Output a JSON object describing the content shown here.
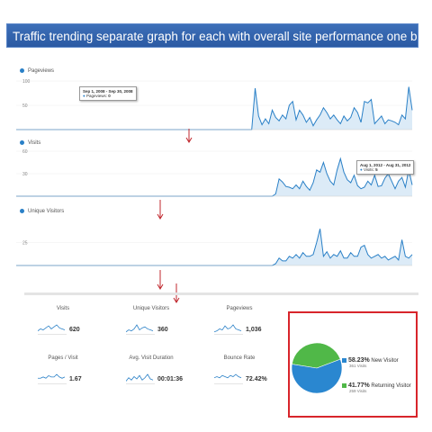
{
  "banner": {
    "title": "Traffic trending separate graph for each with overall site performance one below the other"
  },
  "colors": {
    "line": "#2a80c7",
    "fill": "#dcebf7",
    "arrow": "#c0272d",
    "new_visitor": "#2a87d0",
    "returning_visitor": "#50b848"
  },
  "chart_data": [
    {
      "type": "area",
      "name": "Pageviews",
      "legend": "Pageviews",
      "yticks": [
        "100",
        "50"
      ],
      "ylim": [
        0,
        100
      ],
      "values": [
        0,
        0,
        0,
        0,
        0,
        0,
        0,
        0,
        0,
        0,
        0,
        0,
        0,
        0,
        0,
        0,
        0,
        0,
        0,
        0,
        0,
        0,
        0,
        0,
        0,
        0,
        0,
        0,
        0,
        0,
        0,
        0,
        0,
        0,
        0,
        0,
        0,
        0,
        0,
        0,
        0,
        0,
        0,
        0,
        0,
        0,
        0,
        0,
        0,
        0,
        0,
        0,
        0,
        0,
        0,
        0,
        0,
        0,
        0,
        0,
        0,
        0,
        0,
        0,
        0,
        0,
        0,
        0,
        0,
        0,
        85,
        28,
        10,
        22,
        12,
        40,
        25,
        18,
        30,
        22,
        50,
        58,
        20,
        40,
        30,
        15,
        25,
        8,
        20,
        30,
        45,
        35,
        22,
        30,
        20,
        12,
        28,
        18,
        25,
        45,
        35,
        15,
        58,
        55,
        62,
        12,
        20,
        28,
        12,
        20,
        18,
        15,
        10,
        30,
        22,
        88,
        40
      ],
      "tooltip": {
        "date": "Sep 1, 2008 - Sep 30, 2008",
        "series": "Pageviews",
        "value": "0"
      }
    },
    {
      "type": "area",
      "name": "Visits",
      "legend": "Visits",
      "yticks": [
        "60",
        "30"
      ],
      "ylim": [
        0,
        60
      ],
      "values": [
        0,
        0,
        0,
        0,
        0,
        0,
        0,
        0,
        0,
        0,
        0,
        0,
        0,
        0,
        0,
        0,
        0,
        0,
        0,
        0,
        0,
        0,
        0,
        0,
        0,
        0,
        0,
        0,
        0,
        0,
        0,
        0,
        0,
        0,
        0,
        0,
        0,
        0,
        0,
        0,
        0,
        0,
        0,
        0,
        0,
        0,
        0,
        0,
        0,
        0,
        0,
        0,
        0,
        0,
        0,
        0,
        0,
        0,
        0,
        0,
        0,
        0,
        0,
        0,
        0,
        0,
        0,
        0,
        0,
        0,
        0,
        0,
        0,
        0,
        0,
        0,
        3,
        23,
        19,
        13,
        12,
        10,
        15,
        10,
        20,
        13,
        8,
        18,
        35,
        32,
        45,
        30,
        20,
        15,
        35,
        50,
        32,
        22,
        18,
        28,
        14,
        10,
        12,
        20,
        15,
        28,
        13,
        14,
        24,
        30,
        20,
        10,
        20,
        25,
        12,
        35,
        15
      ],
      "tooltip": {
        "date": "Aug 1, 2012 - Aug 31, 2012",
        "series": "Visits",
        "value": "5"
      }
    },
    {
      "type": "area",
      "name": "Unique Visitors",
      "legend": "Unique Visitors",
      "yticks": [
        "25"
      ],
      "ylim": [
        0,
        50
      ],
      "values": [
        0,
        0,
        0,
        0,
        0,
        0,
        0,
        0,
        0,
        0,
        0,
        0,
        0,
        0,
        0,
        0,
        0,
        0,
        0,
        0,
        0,
        0,
        0,
        0,
        0,
        0,
        0,
        0,
        0,
        0,
        0,
        0,
        0,
        0,
        0,
        0,
        0,
        0,
        0,
        0,
        0,
        0,
        0,
        0,
        0,
        0,
        0,
        0,
        0,
        0,
        0,
        0,
        0,
        0,
        0,
        0,
        0,
        0,
        0,
        0,
        0,
        0,
        0,
        0,
        0,
        0,
        0,
        0,
        0,
        0,
        0,
        0,
        0,
        0,
        0,
        0,
        2,
        8,
        5,
        5,
        10,
        8,
        12,
        8,
        14,
        10,
        10,
        12,
        25,
        40,
        10,
        15,
        8,
        12,
        10,
        16,
        8,
        8,
        14,
        10,
        10,
        20,
        22,
        12,
        8,
        10,
        12,
        8,
        10,
        6,
        8,
        10,
        6,
        28,
        10,
        8,
        12
      ],
      "tooltip": null
    }
  ],
  "stats": [
    {
      "label": "Visits",
      "value": "620",
      "spark": [
        3,
        5,
        4,
        6,
        8,
        5,
        7,
        9,
        6,
        5,
        4
      ]
    },
    {
      "label": "Unique Visitors",
      "value": "360",
      "spark": [
        2,
        4,
        3,
        5,
        9,
        4,
        6,
        7,
        5,
        4,
        3
      ]
    },
    {
      "label": "Pageviews",
      "value": "1,036",
      "spark": [
        2,
        3,
        5,
        4,
        8,
        5,
        6,
        9,
        5,
        4,
        3
      ]
    },
    {
      "label": "Pages / Visit",
      "value": "1.67",
      "spark": [
        4,
        4,
        5,
        4,
        6,
        5,
        5,
        7,
        5,
        4,
        5
      ]
    },
    {
      "label": "Avg. Visit Duration",
      "value": "00:01:36",
      "spark": [
        2,
        5,
        3,
        6,
        4,
        7,
        3,
        5,
        8,
        4,
        3
      ]
    },
    {
      "label": "Bounce Rate",
      "value": "72.42%",
      "spark": [
        5,
        6,
        5,
        7,
        6,
        5,
        7,
        6,
        8,
        6,
        5
      ]
    }
  ],
  "pie": {
    "slices": [
      {
        "label": "New Visitor",
        "pct": "58.23%",
        "visits": "361 Visits",
        "value": 58.23,
        "color": "#2a87d0"
      },
      {
        "label": "Returning Visitor",
        "pct": "41.77%",
        "visits": "259 Visits",
        "value": 41.77,
        "color": "#50b848"
      }
    ]
  }
}
